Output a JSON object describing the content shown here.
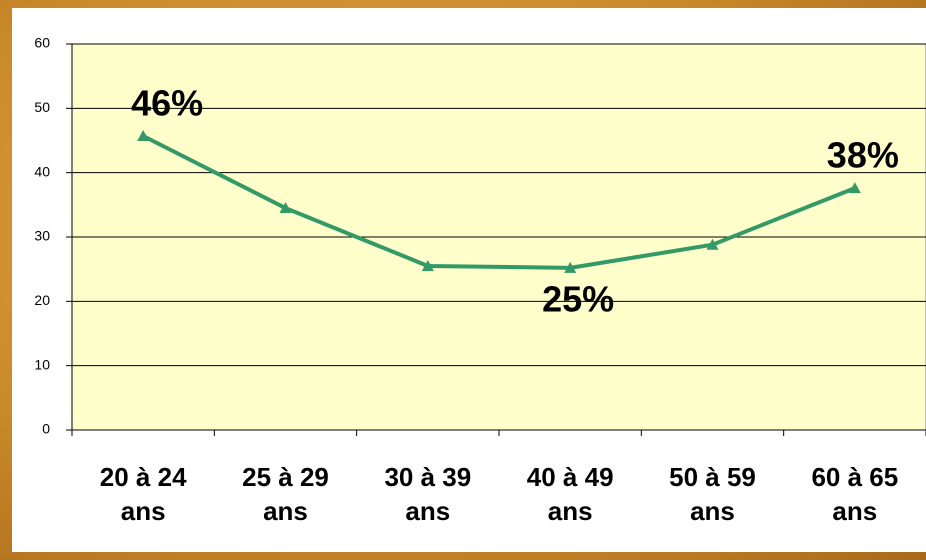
{
  "chart_data": {
    "type": "line",
    "categories": [
      "20 à 24 ans",
      "25 à 29 ans",
      "30 à 39 ans",
      "40 à 49 ans",
      "50 à 59 ans",
      "60 à 65 ans"
    ],
    "series": [
      {
        "color": "#339966",
        "values": [
          45.7,
          34.5,
          25.5,
          25.2,
          28.8,
          37.6
        ],
        "value_labels": [
          "46%",
          null,
          null,
          "25%",
          null,
          "38%"
        ]
      }
    ],
    "ylim": [
      0,
      60
    ],
    "yticks": [
      0,
      10,
      20,
      30,
      40,
      50,
      60
    ],
    "grid": true
  }
}
